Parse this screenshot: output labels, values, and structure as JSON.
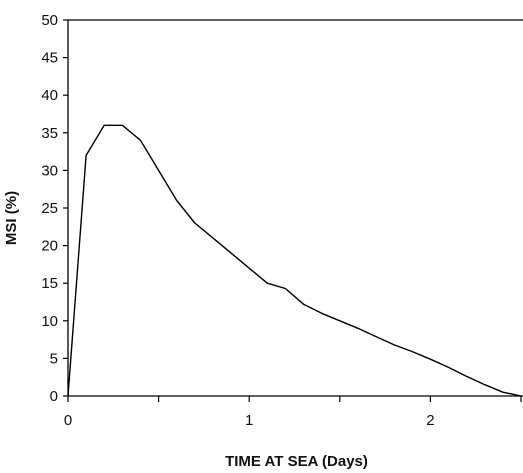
{
  "chart_data": {
    "type": "line",
    "title": "",
    "xlabel": "TIME AT SEA (Days)",
    "ylabel": "MSI (%)",
    "xlim": [
      0,
      2.5
    ],
    "ylim": [
      0,
      50
    ],
    "x_ticks": [
      0,
      0.5,
      1,
      1.5,
      2,
      2.5
    ],
    "x_tick_labels": [
      "0",
      "",
      "1",
      "",
      "2",
      ""
    ],
    "y_ticks": [
      0,
      5,
      10,
      15,
      20,
      25,
      30,
      35,
      40,
      45,
      50
    ],
    "y_tick_labels": [
      "0",
      "5",
      "10",
      "15",
      "20",
      "25",
      "30",
      "35",
      "40",
      "45",
      "50"
    ],
    "grid": false,
    "legend": "none",
    "series": [
      {
        "color": "#000000",
        "x": [
          0,
          0.1,
          0.2,
          0.3,
          0.4,
          0.5,
          0.6,
          0.7,
          0.8,
          0.9,
          1.0,
          1.1,
          1.2,
          1.3,
          1.4,
          1.5,
          1.6,
          1.7,
          1.8,
          1.9,
          2.0,
          2.1,
          2.2,
          2.3,
          2.4,
          2.5
        ],
        "y": [
          0,
          32,
          36,
          36,
          34,
          30,
          26,
          23,
          21,
          19,
          17,
          15,
          14.3,
          12.2,
          11,
          10,
          9,
          7.9,
          6.8,
          5.9,
          4.9,
          3.8,
          2.6,
          1.5,
          0.5,
          0
        ]
      }
    ]
  }
}
